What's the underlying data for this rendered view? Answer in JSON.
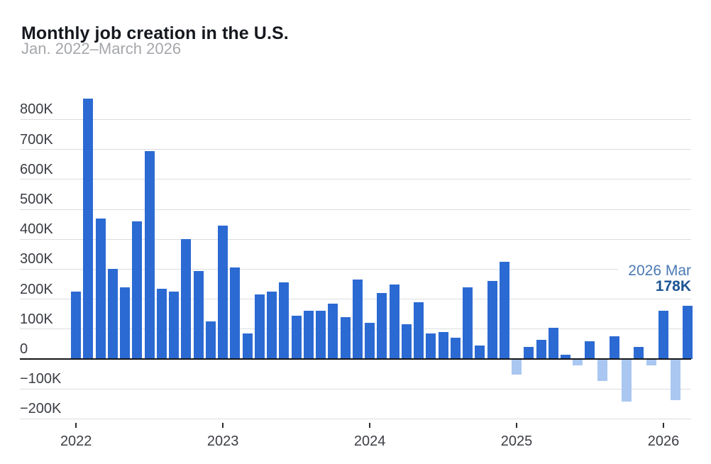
{
  "header": {
    "title": "Monthly job creation in the U.S.",
    "subtitle": "Jan. 2022–March 2026"
  },
  "annotation": {
    "label": "2026 Mar",
    "value": "178K"
  },
  "colors": {
    "title": "#15181e",
    "subtitle": "#a5a7ab",
    "bar_positive": "#2c6ad3",
    "bar_negative": "#a9c7f0",
    "gridline": "#dcdddf",
    "zero_line": "#141518",
    "axis_label": "#3b3e44",
    "tick_mark": "#2a2b2e",
    "annotation_label": "#4a79b4",
    "annotation_value": "#1d5494"
  },
  "chart_data": {
    "type": "bar",
    "title": "Monthly job creation in the U.S.",
    "subtitle": "Jan. 2022–March 2026",
    "unit": "K",
    "xlabel": "",
    "ylabel": "",
    "grid": true,
    "legend": "none",
    "ylim": [
      -250,
      900
    ],
    "x": [
      "Jan 2022",
      "Feb 2022",
      "Mar 2022",
      "Apr 2022",
      "May 2022",
      "Jun 2022",
      "Jul 2022",
      "Aug 2022",
      "Sep 2022",
      "Oct 2022",
      "Nov 2022",
      "Dec 2022",
      "Jan 2023",
      "Feb 2023",
      "Mar 2023",
      "Apr 2023",
      "May 2023",
      "Jun 2023",
      "Jul 2023",
      "Aug 2023",
      "Sep 2023",
      "Oct 2023",
      "Nov 2023",
      "Dec 2023",
      "Jan 2024",
      "Feb 2024",
      "Mar 2024",
      "Apr 2024",
      "May 2024",
      "Jun 2024",
      "Jul 2024",
      "Aug 2024",
      "Sep 2024",
      "Oct 2024",
      "Nov 2024",
      "Dec 2024",
      "Jan 2025",
      "Feb 2025",
      "Mar 2025",
      "Apr 2025",
      "May 2025",
      "Jun 2025",
      "Jul 2025",
      "Aug 2025",
      "Sep 2025",
      "Oct 2025",
      "Nov 2025",
      "Dec 2025",
      "Jan 2026",
      "Feb 2026",
      "Mar 2026"
    ],
    "values": [
      225,
      870,
      470,
      300,
      240,
      460,
      695,
      235,
      225,
      400,
      295,
      125,
      445,
      305,
      85,
      215,
      225,
      255,
      145,
      160,
      160,
      185,
      140,
      265,
      120,
      220,
      250,
      115,
      190,
      85,
      90,
      70,
      240,
      45,
      260,
      325,
      -50,
      40,
      65,
      105,
      15,
      -20,
      60,
      -70,
      75,
      -140,
      40,
      -20,
      160,
      -135,
      178
    ],
    "yticks": {
      "values": [
        800,
        700,
        600,
        500,
        400,
        300,
        200,
        100,
        0,
        -100,
        -200
      ],
      "labels": [
        "800K",
        "700K",
        "600K",
        "500K",
        "400K",
        "300K",
        "200K",
        "100K",
        "0",
        "−100K",
        "−200K"
      ]
    },
    "xticks": {
      "values": [
        "2022",
        "2023",
        "2024",
        "2025",
        "2026"
      ]
    },
    "highlight": {
      "month": "2026 Mar",
      "value_label": "178K",
      "value": 178
    }
  }
}
